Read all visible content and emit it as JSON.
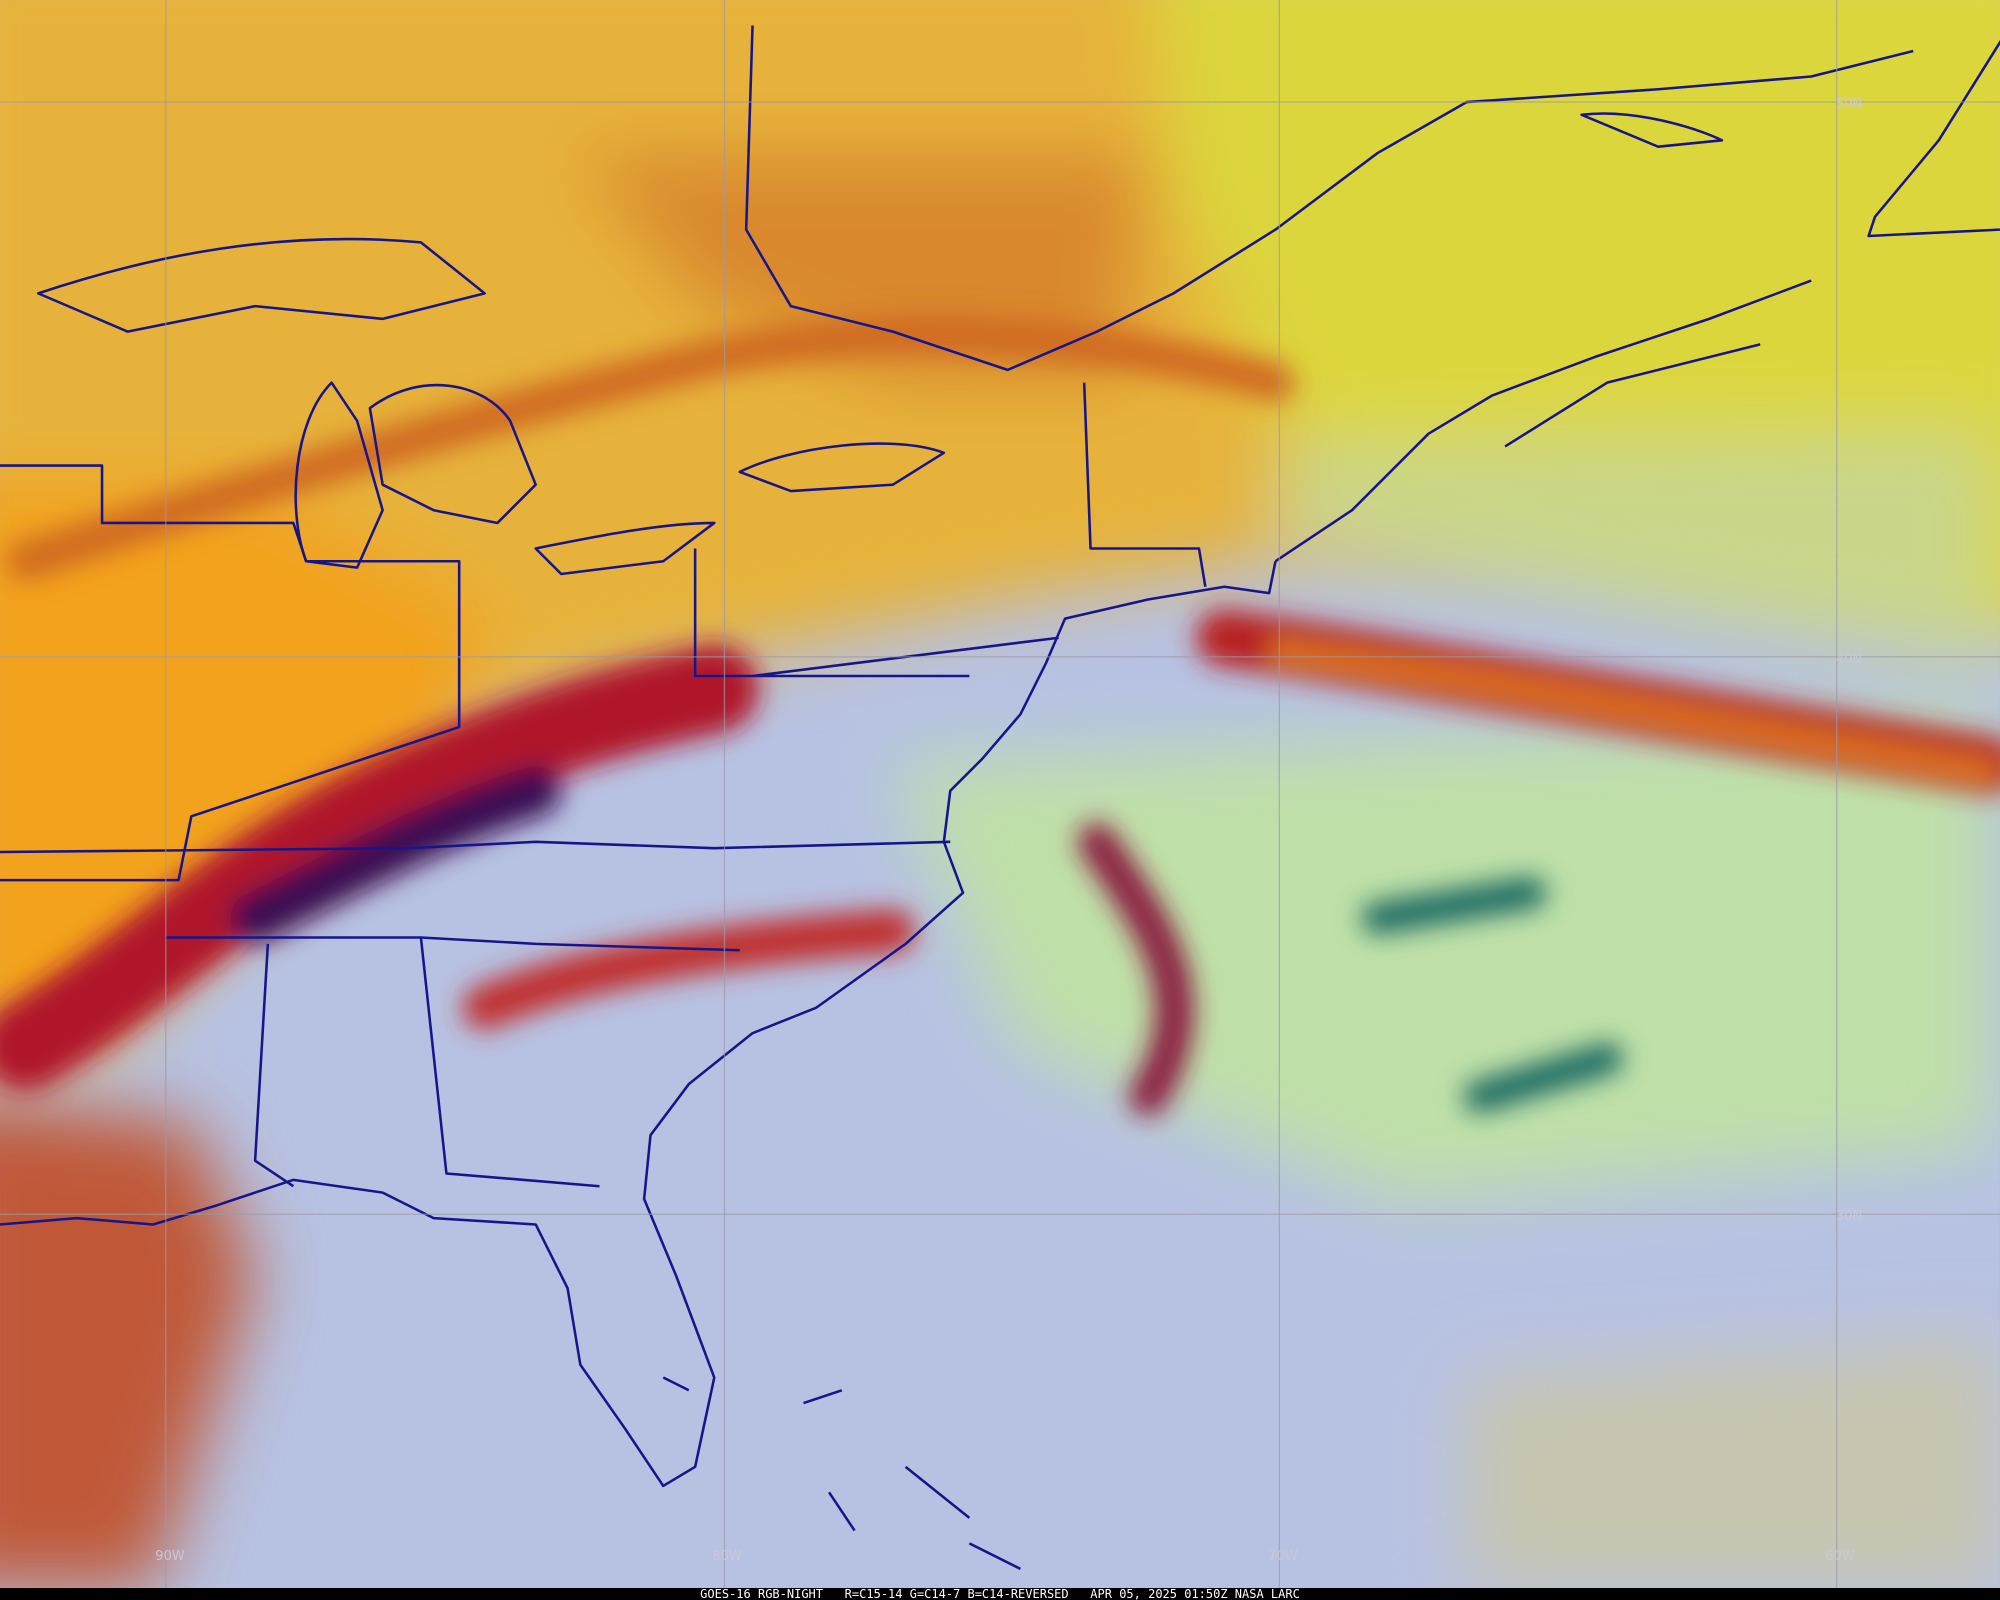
{
  "grid_labels": {
    "latitude": [
      "50N",
      "40N",
      "30N"
    ],
    "longitude": [
      "90W",
      "80W",
      "70W",
      "60W"
    ]
  },
  "footer": "GOES-16 RGB-NIGHT   R=C15-14 G=C14-7 B=C14-REVERSED   APR 05, 2025 01:50Z NASA LARC"
}
